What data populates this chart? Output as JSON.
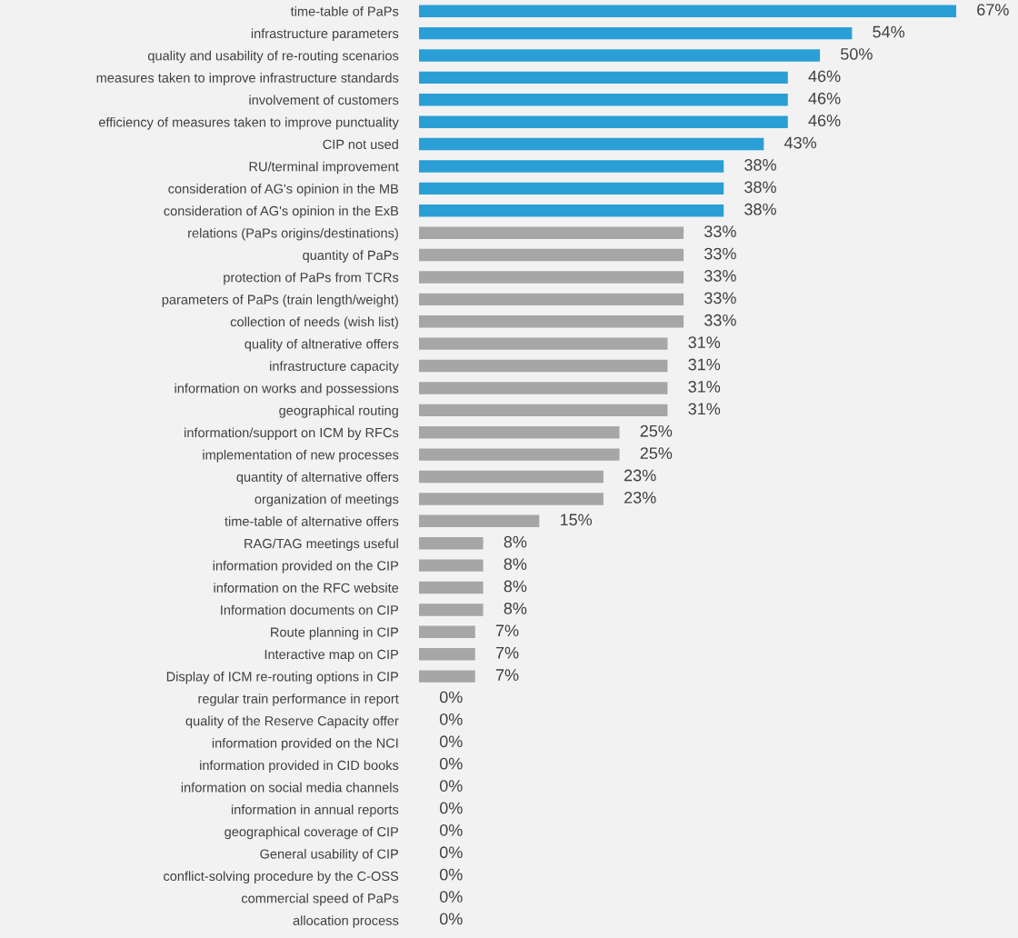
{
  "chart_data": {
    "type": "bar",
    "orientation": "horizontal",
    "categories": [
      "time-table of PaPs",
      "infrastructure parameters",
      "quality and usability of re-routing scenarios",
      "measures taken to improve infrastructure standards",
      "involvement of customers",
      "efficiency of measures taken to improve punctuality",
      "CIP not used",
      "RU/terminal improvement",
      "consideration of AG's opinion in the MB",
      "consideration of AG's opinion in the ExB",
      "relations (PaPs origins/destinations)",
      "quantity of PaPs",
      "protection of PaPs from TCRs",
      "parameters of PaPs (train length/weight)",
      "collection of needs (wish list)",
      "quality of altnerative offers",
      "infrastructure capacity",
      "information on works and possessions",
      "geographical routing",
      "information/support on ICM by RFCs",
      "implementation of new processes",
      "quantity of alternative offers",
      "organization of meetings",
      "time-table of alternative offers",
      "RAG/TAG meetings useful",
      "information provided on the CIP",
      "information on the RFC website",
      "Information documents on CIP",
      "Route planning in CIP",
      "Interactive map on CIP",
      "Display of ICM re-routing options in CIP",
      "regular train performance in report",
      "quality of the Reserve Capacity offer",
      "information provided on the NCI",
      "information provided in CID books",
      "information on social media channels",
      "information in annual reports",
      "geographical coverage of CIP",
      "General usability of CIP",
      "conflict-solving procedure by the C-OSS",
      "commercial speed of PaPs",
      "allocation process"
    ],
    "values": [
      67,
      54,
      50,
      46,
      46,
      46,
      43,
      38,
      38,
      38,
      33,
      33,
      33,
      33,
      33,
      31,
      31,
      31,
      31,
      25,
      25,
      23,
      23,
      15,
      8,
      8,
      8,
      8,
      7,
      7,
      7,
      0,
      0,
      0,
      0,
      0,
      0,
      0,
      0,
      0,
      0,
      0
    ],
    "value_labels": [
      "67%",
      "54%",
      "50%",
      "46%",
      "46%",
      "46%",
      "43%",
      "38%",
      "38%",
      "38%",
      "33%",
      "33%",
      "33%",
      "33%",
      "33%",
      "31%",
      "31%",
      "31%",
      "31%",
      "25%",
      "25%",
      "23%",
      "23%",
      "15%",
      "8%",
      "8%",
      "8%",
      "8%",
      "7%",
      "7%",
      "7%",
      "0%",
      "0%",
      "0%",
      "0%",
      "0%",
      "0%",
      "0%",
      "0%",
      "0%",
      "0%",
      "0%"
    ],
    "colors": [
      "#2a9fd6",
      "#2a9fd6",
      "#2a9fd6",
      "#2a9fd6",
      "#2a9fd6",
      "#2a9fd6",
      "#2a9fd6",
      "#2a9fd6",
      "#2a9fd6",
      "#2a9fd6",
      "#a6a6a6",
      "#a6a6a6",
      "#a6a6a6",
      "#a6a6a6",
      "#a6a6a6",
      "#a6a6a6",
      "#a6a6a6",
      "#a6a6a6",
      "#a6a6a6",
      "#a6a6a6",
      "#a6a6a6",
      "#a6a6a6",
      "#a6a6a6",
      "#a6a6a6",
      "#a6a6a6",
      "#a6a6a6",
      "#a6a6a6",
      "#a6a6a6",
      "#a6a6a6",
      "#a6a6a6",
      "#a6a6a6",
      "#a6a6a6",
      "#a6a6a6",
      "#a6a6a6",
      "#a6a6a6",
      "#a6a6a6",
      "#a6a6a6",
      "#a6a6a6",
      "#a6a6a6",
      "#a6a6a6",
      "#a6a6a6",
      "#a6a6a6"
    ],
    "grid": false,
    "legend": false
  }
}
